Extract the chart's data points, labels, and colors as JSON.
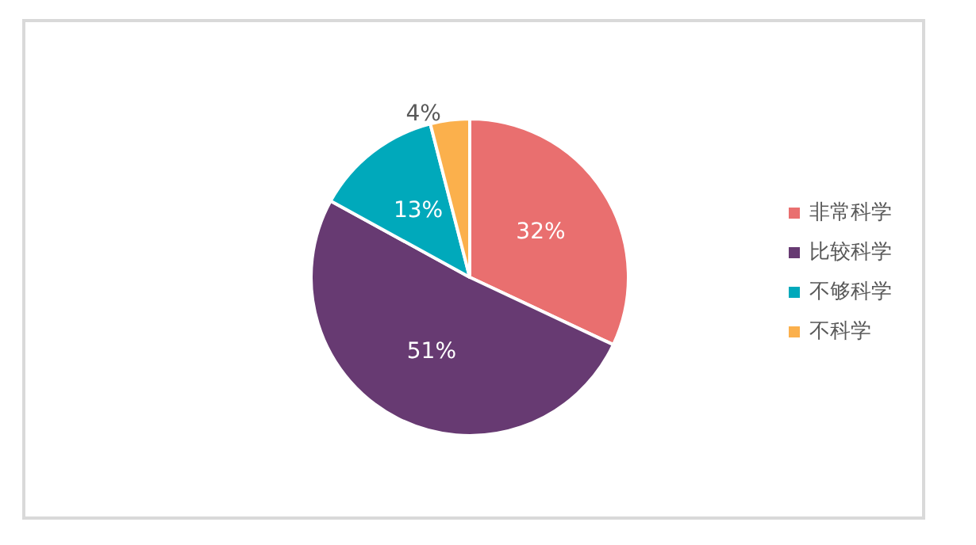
{
  "chart_data": {
    "type": "pie",
    "categories": [
      "非常科学",
      "比较科学",
      "不够科学",
      "不科学"
    ],
    "values": [
      32,
      51,
      13,
      4
    ],
    "colors": [
      "#e96f6f",
      "#673a72",
      "#00a9bb",
      "#fbb04c"
    ],
    "value_labels": [
      "32%",
      "51%",
      "13%",
      "4%"
    ],
    "legend": "right"
  }
}
